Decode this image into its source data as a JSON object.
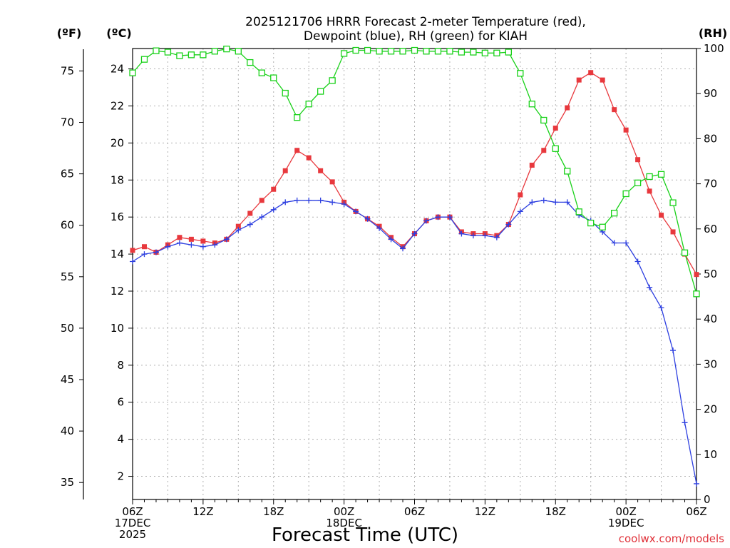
{
  "title_line1": "2025121706 HRRR Forecast 2-meter Temperature (red),",
  "title_line2": "Dewpoint (blue), RH (green) for KIAH",
  "unit_f": "(ºF)",
  "unit_c": "(ºC)",
  "unit_rh": "(RH)",
  "xlabel": "Forecast Time (UTC)",
  "credit": "coolwx.com/models",
  "colors": {
    "temperature": "#e8383d",
    "dewpoint": "#2d3fe0",
    "rh": "#19d119"
  },
  "chart_data": {
    "type": "line",
    "x_hours": [
      0,
      1,
      2,
      3,
      4,
      5,
      6,
      7,
      8,
      9,
      10,
      11,
      12,
      13,
      14,
      15,
      16,
      17,
      18,
      19,
      20,
      21,
      22,
      23,
      24,
      25,
      26,
      27,
      28,
      29,
      30,
      31,
      32,
      33,
      34,
      35,
      36,
      37,
      38,
      39,
      40,
      41,
      42,
      43,
      44,
      45,
      46,
      47,
      48
    ],
    "x_ticks": [
      {
        "hour": 0,
        "lines": [
          "06Z",
          "17DEC",
          "2025"
        ]
      },
      {
        "hour": 6,
        "lines": [
          "12Z"
        ]
      },
      {
        "hour": 12,
        "lines": [
          "18Z"
        ]
      },
      {
        "hour": 18,
        "lines": [
          "00Z",
          "18DEC"
        ]
      },
      {
        "hour": 24,
        "lines": [
          "06Z"
        ]
      },
      {
        "hour": 30,
        "lines": [
          "12Z"
        ]
      },
      {
        "hour": 36,
        "lines": [
          "18Z"
        ]
      },
      {
        "hour": 42,
        "lines": [
          "00Z",
          "19DEC"
        ]
      },
      {
        "hour": 48,
        "lines": [
          "06Z"
        ]
      }
    ],
    "celsius_axis": {
      "min": 0.75,
      "max": 25.1,
      "ticks": [
        2,
        4,
        6,
        8,
        10,
        12,
        14,
        16,
        18,
        20,
        22,
        24
      ]
    },
    "fahrenheit_axis": {
      "ticks": [
        35,
        40,
        45,
        50,
        55,
        60,
        65,
        70,
        75
      ]
    },
    "rh_axis": {
      "min": 0,
      "max": 100,
      "ticks": [
        0,
        10,
        20,
        30,
        40,
        50,
        60,
        70,
        80,
        90,
        100
      ]
    },
    "series": [
      {
        "key": "temperature",
        "axis": "celsius",
        "marker": "filled-square",
        "values": [
          14.2,
          14.4,
          14.1,
          14.5,
          14.9,
          14.8,
          14.7,
          14.6,
          14.8,
          15.5,
          16.2,
          16.9,
          17.5,
          18.5,
          19.6,
          19.2,
          18.5,
          17.9,
          16.8,
          16.3,
          15.9,
          15.5,
          14.9,
          14.4,
          15.1,
          15.8,
          16.0,
          16.0,
          15.2,
          15.1,
          15.1,
          15.0,
          15.6,
          17.2,
          18.8,
          19.6,
          20.8,
          21.9,
          23.4,
          23.8,
          23.4,
          21.8,
          20.7,
          19.1,
          17.4,
          16.1,
          15.2,
          14.0,
          12.9
        ]
      },
      {
        "key": "dewpoint",
        "axis": "celsius",
        "marker": "plus",
        "values": [
          13.6,
          14.0,
          14.1,
          14.4,
          14.6,
          14.5,
          14.4,
          14.5,
          14.8,
          15.3,
          15.6,
          16.0,
          16.4,
          16.8,
          16.9,
          16.9,
          16.9,
          16.8,
          16.7,
          16.3,
          15.9,
          15.4,
          14.8,
          14.3,
          15.1,
          15.8,
          16.0,
          16.0,
          15.1,
          15.0,
          15.0,
          14.9,
          15.6,
          16.3,
          16.8,
          16.9,
          16.8,
          16.8,
          16.1,
          15.8,
          15.2,
          14.6,
          14.6,
          13.6,
          12.2,
          11.1,
          8.8,
          4.9,
          1.6
        ]
      },
      {
        "key": "rh",
        "axis": "rh",
        "marker": "open-square",
        "values": [
          94.6,
          97.6,
          99.5,
          99.2,
          98.4,
          98.6,
          98.6,
          99.4,
          99.9,
          99.4,
          96.9,
          94.6,
          93.5,
          90.1,
          84.7,
          87.7,
          90.5,
          92.9,
          98.9,
          99.6,
          99.6,
          99.4,
          99.4,
          99.4,
          99.6,
          99.4,
          99.4,
          99.4,
          99.2,
          99.2,
          99.0,
          99.0,
          99.2,
          94.5,
          87.7,
          84.1,
          77.8,
          72.8,
          63.8,
          61.3,
          60.4,
          63.5,
          67.8,
          70.2,
          71.6,
          72.1,
          65.8,
          54.7,
          45.6
        ]
      }
    ]
  }
}
